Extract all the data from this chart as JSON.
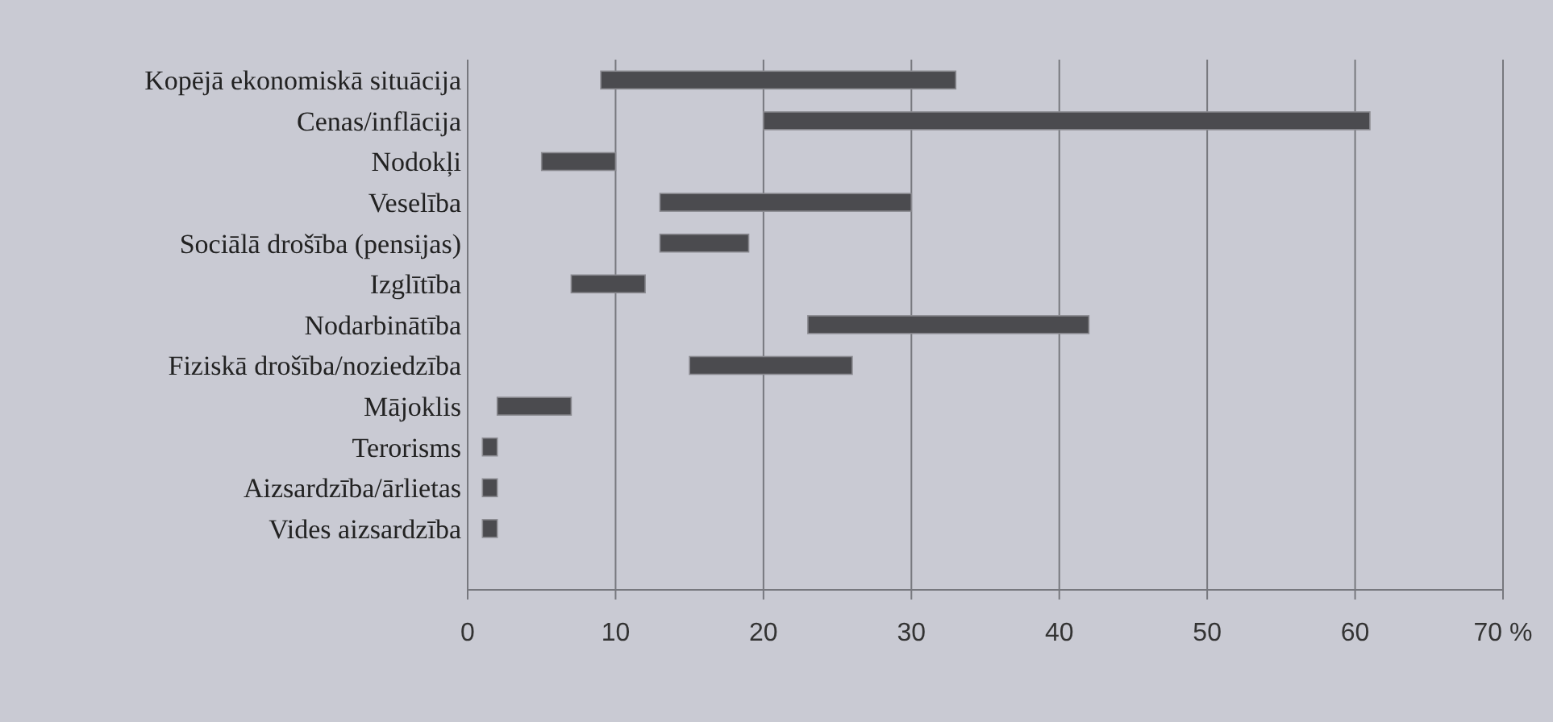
{
  "chart_data": {
    "type": "bar",
    "orientation": "horizontal",
    "categories": [
      "Kopējā ekonomiskā situācija",
      "Cenas/inflācija",
      "Nodokļi",
      "Veselība",
      "Sociālā drošība (pensijas)",
      "Izglītība",
      "Nodarbinātība",
      "Fiziskā drošība/noziedzība",
      "Mājoklis",
      "Terorisms",
      "Aizsardzība/ārlietas",
      "Vides aizsardzība"
    ],
    "base": [
      9,
      20,
      5,
      13,
      13,
      7,
      23,
      15,
      2,
      1,
      1,
      1
    ],
    "values": [
      24,
      41,
      5,
      17,
      6,
      5,
      19,
      11,
      5,
      1,
      1,
      1
    ],
    "color": "#4b4b4f",
    "xlim": [
      0,
      70
    ],
    "xticks": [
      0,
      10,
      20,
      30,
      40,
      50,
      60,
      {
        "value": 70,
        "label": "70 %"
      }
    ],
    "grid": "x"
  }
}
